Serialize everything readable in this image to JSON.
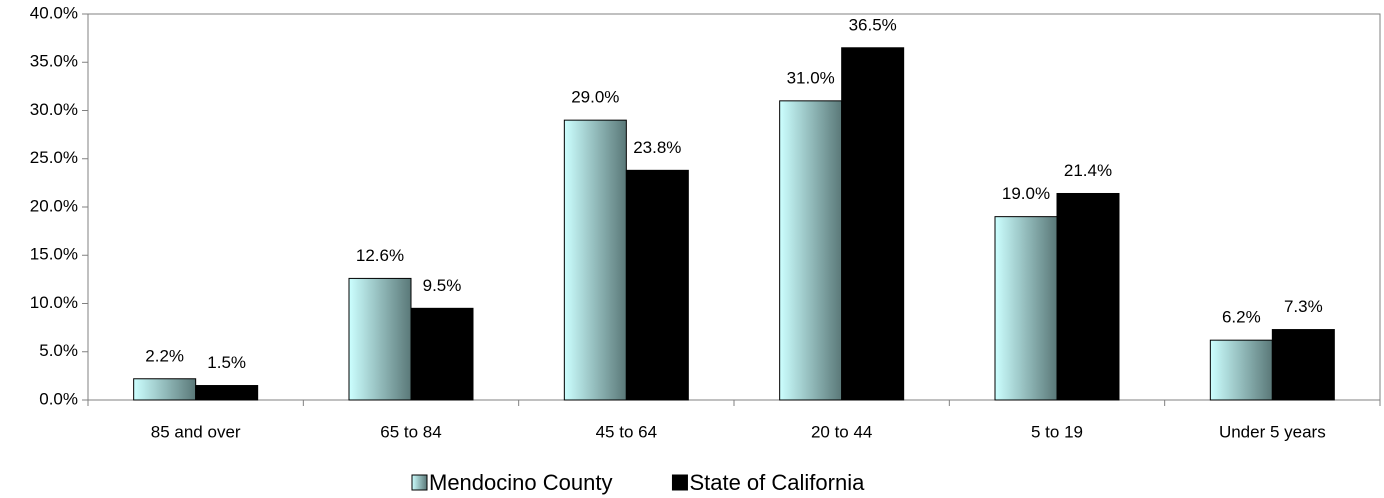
{
  "chart_data": {
    "type": "bar",
    "categories": [
      "85 and over",
      "65 to 84",
      "45 to 64",
      "20 to 44",
      "5 to 19",
      "Under 5 years"
    ],
    "series": [
      {
        "name": "Mendocino County",
        "color": "#ccffff",
        "values": [
          2.2,
          12.6,
          29.0,
          31.0,
          19.0,
          6.2
        ],
        "value_labels": [
          "2.2%",
          "12.6%",
          "29.0%",
          "31.0%",
          "19.0%",
          "6.2%"
        ]
      },
      {
        "name": "State of California",
        "color": "#000000",
        "values": [
          1.5,
          9.5,
          23.8,
          36.5,
          21.4,
          7.3
        ],
        "value_labels": [
          "1.5%",
          "9.5%",
          "23.8%",
          "36.5%",
          "21.4%",
          "7.3%"
        ]
      }
    ],
    "ylim": [
      0,
      40
    ],
    "yticks": [
      {
        "value": 0,
        "label": "0.0%"
      },
      {
        "value": 5,
        "label": "5.0%"
      },
      {
        "value": 10,
        "label": "10.0%"
      },
      {
        "value": 15,
        "label": "15.0%"
      },
      {
        "value": 20,
        "label": "20.0%"
      },
      {
        "value": 25,
        "label": "25.0%"
      },
      {
        "value": 30,
        "label": "30.0%"
      },
      {
        "value": 35,
        "label": "35.0%"
      },
      {
        "value": 40,
        "label": "40.0%"
      }
    ],
    "grid": false,
    "legend": "bottom"
  }
}
